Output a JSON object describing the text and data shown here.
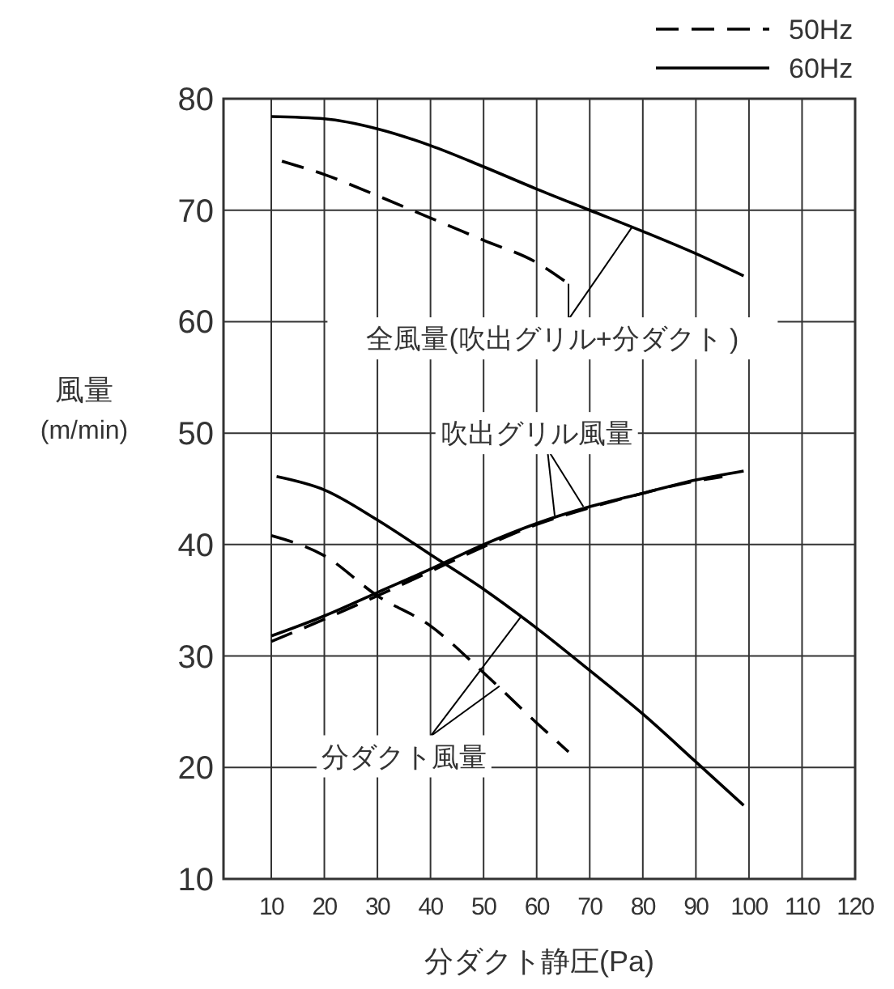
{
  "chart_data": {
    "type": "line",
    "xlabel": "分ダクト静圧(Pa)",
    "ylabel": "風量\n(m/min)",
    "xlim": [
      1,
      120
    ],
    "xticks": [
      10,
      20,
      30,
      40,
      50,
      60,
      70,
      80,
      90,
      100,
      110,
      120
    ],
    "ylim": [
      10,
      80
    ],
    "yticks": [
      10,
      20,
      30,
      40,
      50,
      60,
      70,
      80
    ],
    "grid": true,
    "legend": "top right",
    "marker": "none",
    "series": [
      {
        "name": "50Hz",
        "color": "#000000",
        "line_style": "dashed",
        "x": [
          12,
          20,
          30,
          40,
          50,
          60,
          66
        ],
        "values": [
          74.4,
          73.2,
          71.3,
          69.3,
          67.3,
          65.3,
          63.4
        ]
      },
      {
        "name": "60Hz",
        "color": "#000000",
        "line_style": "solid",
        "x": [
          10,
          20,
          30,
          40,
          50,
          60,
          70,
          80,
          90,
          99
        ],
        "values": [
          78.4,
          78.2,
          77.3,
          75.8,
          73.9,
          71.9,
          70,
          68.1,
          66.1,
          64.1
        ]
      },
      {
        "color": "#000000",
        "line_style": "dashed",
        "x": [
          10,
          20,
          30,
          40,
          50,
          60,
          66
        ],
        "values": [
          40.8,
          39,
          35.4,
          32.7,
          28.5,
          24,
          21.4
        ]
      },
      {
        "color": "#000000",
        "line_style": "solid",
        "x": [
          11,
          20,
          30,
          40,
          50,
          60,
          70,
          80,
          90,
          99
        ],
        "values": [
          46.1,
          44.9,
          42.2,
          39.1,
          36,
          32.5,
          28.7,
          24.8,
          20.5,
          16.6
        ]
      },
      {
        "color": "#000000",
        "line_style": "dashed",
        "x": [
          10,
          20,
          30,
          40,
          50,
          60,
          70,
          80,
          90,
          95
        ],
        "values": [
          31.3,
          33.3,
          35.4,
          37.6,
          39.8,
          41.8,
          43.3,
          44.6,
          45.7,
          46.1
        ]
      },
      {
        "color": "#000000",
        "line_style": "solid",
        "x": [
          10,
          20,
          30,
          40,
          50,
          60,
          70,
          80,
          90,
          99
        ],
        "values": [
          31.8,
          33.6,
          35.7,
          37.8,
          40,
          41.9,
          43.4,
          44.6,
          45.8,
          46.6
        ]
      }
    ],
    "annotations": [
      {
        "text": "全風量(吹出グリル+分ダクト )",
        "x": 66,
        "y": 63.4
      },
      {
        "text": "吹出グリル風量",
        "x": 63.4,
        "y": 42.6
      },
      {
        "text": "分ダクト風量",
        "x": 57,
        "y": 33.5
      }
    ]
  }
}
